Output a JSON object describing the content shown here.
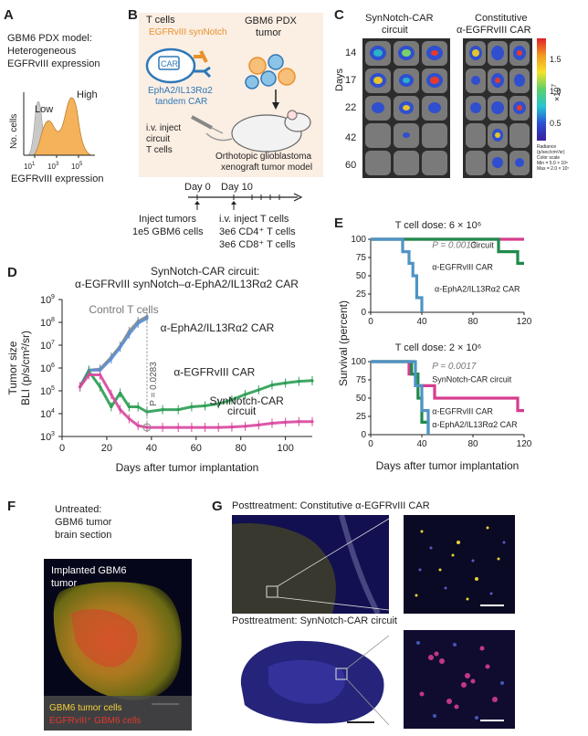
{
  "panelA": {
    "letter": "A",
    "title_lines": [
      "GBM6 PDX model:",
      "Heterogeneous",
      "EGFRvIII expression"
    ],
    "ylabel": "No. cells",
    "xlabel": "EGFRvIII expression",
    "ticks": [
      "10",
      "10",
      "10"
    ],
    "tick_exps": [
      "1",
      "3",
      "5"
    ],
    "low_label": "Low",
    "high_label": "High",
    "colors": {
      "fill": "#f4b25a",
      "control": "#bdbdbd"
    }
  },
  "panelB": {
    "letter": "B",
    "tcells_label": "T cells",
    "synnotch_label": "EGFRvIII synNotch",
    "car_label": "CAR",
    "tandem_lines": [
      "EphA2/IL13Rα2",
      "tandem CAR"
    ],
    "tumor_lines": [
      "GBM6 PDX",
      "tumor"
    ],
    "inject_lines": [
      "i.v. inject",
      "circuit",
      "T cells"
    ],
    "model_lines": [
      "Orthotopic glioblastoma",
      "xenograft tumor model"
    ],
    "day0": "Day 0",
    "day10": "Day 10",
    "left_note": [
      "Inject tumors",
      "1e5 GBM6 cells"
    ],
    "right_note": [
      "i.v. inject T cells",
      "3e6 CD4⁺ T cells",
      "3e6 CD8⁺ T cells"
    ],
    "colors": {
      "synnotch": "#e8912b",
      "car": "#2e78b8"
    }
  },
  "panelC": {
    "letter": "C",
    "col1_lines": [
      "SynNotch-CAR",
      "circuit"
    ],
    "col2_lines": [
      "Constitutive",
      "α-EGFRvIII CAR"
    ],
    "days_label": "Days",
    "days": [
      "14",
      "17",
      "22",
      "42",
      "60"
    ],
    "scale_ticks": [
      "1.5",
      "1.0",
      "0.5"
    ],
    "scale_exp": "×10",
    "scale_exp_sup": "7",
    "scale_notes": [
      "Radiance",
      "(p/sec/cm²/sr)",
      "Color scale",
      "Min = 5.0 × 10⁵",
      "Max = 2.0 × 10⁷"
    ]
  },
  "panelD": {
    "letter": "D",
    "title_lines": [
      "SynNotch-CAR circuit:",
      "α-EGFRvIII synNotch–α-EphA2/IL13Rα2 CAR"
    ],
    "ylabel_lines": [
      "Tumor size",
      "BLI (p/s/cm²/sr)"
    ],
    "xlabel": "Days after tumor implantation",
    "y_exps": [
      "3",
      "4",
      "5",
      "6",
      "7",
      "8",
      "9"
    ],
    "y_base": "10",
    "x_ticks": [
      "0",
      "20",
      "40",
      "60",
      "80",
      "100"
    ],
    "pvalue": "P = 0.0283",
    "labels": {
      "control": "Control T cells",
      "epha2": "α-EphA2/IL13Rα2 CAR",
      "egfr": "α-EGFRvIII CAR",
      "syn1": "SynNotch-CAR",
      "syn2": "circuit"
    }
  },
  "panelE": {
    "letter": "E",
    "ylabel": "Survival (percent)",
    "xlabel": "Days after tumor implantation",
    "top_dose": "T cell dose:  6 × 10⁶",
    "bottom_dose": "T cell dose:  2 × 10⁶",
    "top_p": "P = 0.0013",
    "bottom_p": "P = 0.0017",
    "y_ticks": [
      "0",
      "25",
      "50",
      "75",
      "100"
    ],
    "x_ticks": [
      "0",
      "40",
      "80",
      "120"
    ],
    "top_labels": [
      "Circuit",
      "α-EGFRvIII CAR",
      "α-EphA2/IL13Rα2 CAR"
    ],
    "bottom_labels": [
      "SynNotch-CAR circuit",
      "α-EGFRvIII CAR",
      "α-EphA2/IL13Rα2 CAR"
    ],
    "colors": {
      "circuit": "#d63d8e",
      "egfr": "#1f8a4c",
      "epha2": "#4f94c4"
    }
  },
  "panelF": {
    "letter": "F",
    "title_lines": [
      "Untreated:",
      "GBM6 tumor",
      "brain section"
    ],
    "image_label_lines": [
      "Implanted GBM6",
      "tumor"
    ],
    "legend": [
      "GBM6 tumor cells",
      "EGFRvIII⁺ GBM6 cells"
    ]
  },
  "panelG": {
    "letter": "G",
    "top_title": "Posttreatment: Constitutive α-EGFRvIII CAR",
    "bottom_title": "Posttreatment: SynNotch-CAR circuit"
  },
  "chart_data": [
    {
      "type": "line",
      "title": "SynNotch-CAR circuit: α-EGFRvIII synNotch–α-EphA2/IL13Rα2 CAR",
      "xlabel": "Days after tumor implantation",
      "ylabel": "Tumor size BLI (p/s/cm²/sr)",
      "y_scale": "log",
      "xlim": [
        0,
        112
      ],
      "ylim": [
        1000,
        1000000000
      ],
      "series": [
        {
          "name": "Control T cells",
          "color": "#8a8a8a",
          "x": [
            8,
            12,
            17,
            22,
            26,
            30,
            34,
            38
          ],
          "y": [
            150000,
            800000,
            900000,
            3000000,
            9000000,
            40000000,
            110000000,
            180000000
          ]
        },
        {
          "name": "α-EphA2/IL13Rα2 CAR",
          "color": "#5b8fd0",
          "x": [
            8,
            12,
            17,
            22,
            26,
            30,
            34,
            38
          ],
          "y": [
            150000,
            800000,
            800000,
            2500000,
            8000000,
            30000000,
            90000000,
            150000000
          ]
        },
        {
          "name": "α-EGFRvIII CAR",
          "color": "#2e9e56",
          "x": [
            8,
            12,
            17,
            22,
            26,
            30,
            34,
            38,
            45,
            52,
            58,
            64,
            70,
            76,
            82,
            88,
            94,
            100,
            106,
            112
          ],
          "y": [
            150000,
            700000,
            150000,
            20000,
            80000,
            20000,
            20000,
            12000,
            15000,
            15000,
            20000,
            22000,
            27000,
            40000,
            70000,
            110000,
            180000,
            220000,
            260000,
            280000
          ]
        },
        {
          "name": "SynNotch-CAR circuit",
          "color": "#d94aa0",
          "x": [
            8,
            12,
            17,
            22,
            26,
            30,
            34,
            38,
            45,
            52,
            58,
            64,
            70,
            76,
            82,
            88,
            94,
            100,
            106,
            112
          ],
          "y": [
            150000,
            500000,
            500000,
            70000,
            15000,
            6000,
            3000,
            2500,
            2500,
            2500,
            2500,
            2500,
            2500,
            2600,
            2800,
            3200,
            3800,
            4200,
            4500,
            4500
          ]
        }
      ]
    },
    {
      "type": "line",
      "title": "T cell dose: 6 × 10⁶",
      "xlabel": "Days after tumor implantation",
      "ylabel": "Survival (percent)",
      "xlim": [
        0,
        120
      ],
      "ylim": [
        0,
        100
      ],
      "series": [
        {
          "name": "Circuit",
          "color": "#d63d8e",
          "x": [
            0,
            120
          ],
          "y": [
            100,
            100
          ]
        },
        {
          "name": "α-EGFRvIII CAR",
          "color": "#1f8a4c",
          "x": [
            0,
            100,
            100,
            115,
            115,
            120
          ],
          "y": [
            100,
            100,
            83,
            83,
            67,
            67
          ]
        },
        {
          "name": "α-EphA2/IL13Rα2 CAR",
          "color": "#4f94c4",
          "x": [
            0,
            25,
            25,
            30,
            30,
            33,
            33,
            36,
            36,
            40,
            40
          ],
          "y": [
            100,
            100,
            83,
            83,
            67,
            67,
            50,
            50,
            20,
            20,
            0
          ]
        }
      ]
    },
    {
      "type": "line",
      "title": "T cell dose: 2 × 10⁶",
      "xlabel": "Days after tumor implantation",
      "ylabel": "Survival (percent)",
      "xlim": [
        0,
        120
      ],
      "ylim": [
        0,
        100
      ],
      "series": [
        {
          "name": "SynNotch-CAR circuit",
          "color": "#d63d8e",
          "x": [
            0,
            30,
            30,
            35,
            35,
            50,
            50,
            82,
            82,
            115,
            115,
            120
          ],
          "y": [
            100,
            100,
            83,
            83,
            67,
            67,
            50,
            50,
            50,
            50,
            33,
            33
          ]
        },
        {
          "name": "α-EGFRvIII CAR",
          "color": "#1f8a4c",
          "x": [
            0,
            32,
            32,
            37,
            37,
            40,
            40,
            45,
            45
          ],
          "y": [
            100,
            100,
            83,
            83,
            50,
            50,
            17,
            17,
            0
          ]
        },
        {
          "name": "α-EphA2/IL13Rα2 CAR",
          "color": "#4f94c4",
          "x": [
            0,
            35,
            35,
            40,
            40,
            45,
            45
          ],
          "y": [
            100,
            100,
            67,
            67,
            33,
            33,
            0
          ]
        }
      ]
    }
  ]
}
